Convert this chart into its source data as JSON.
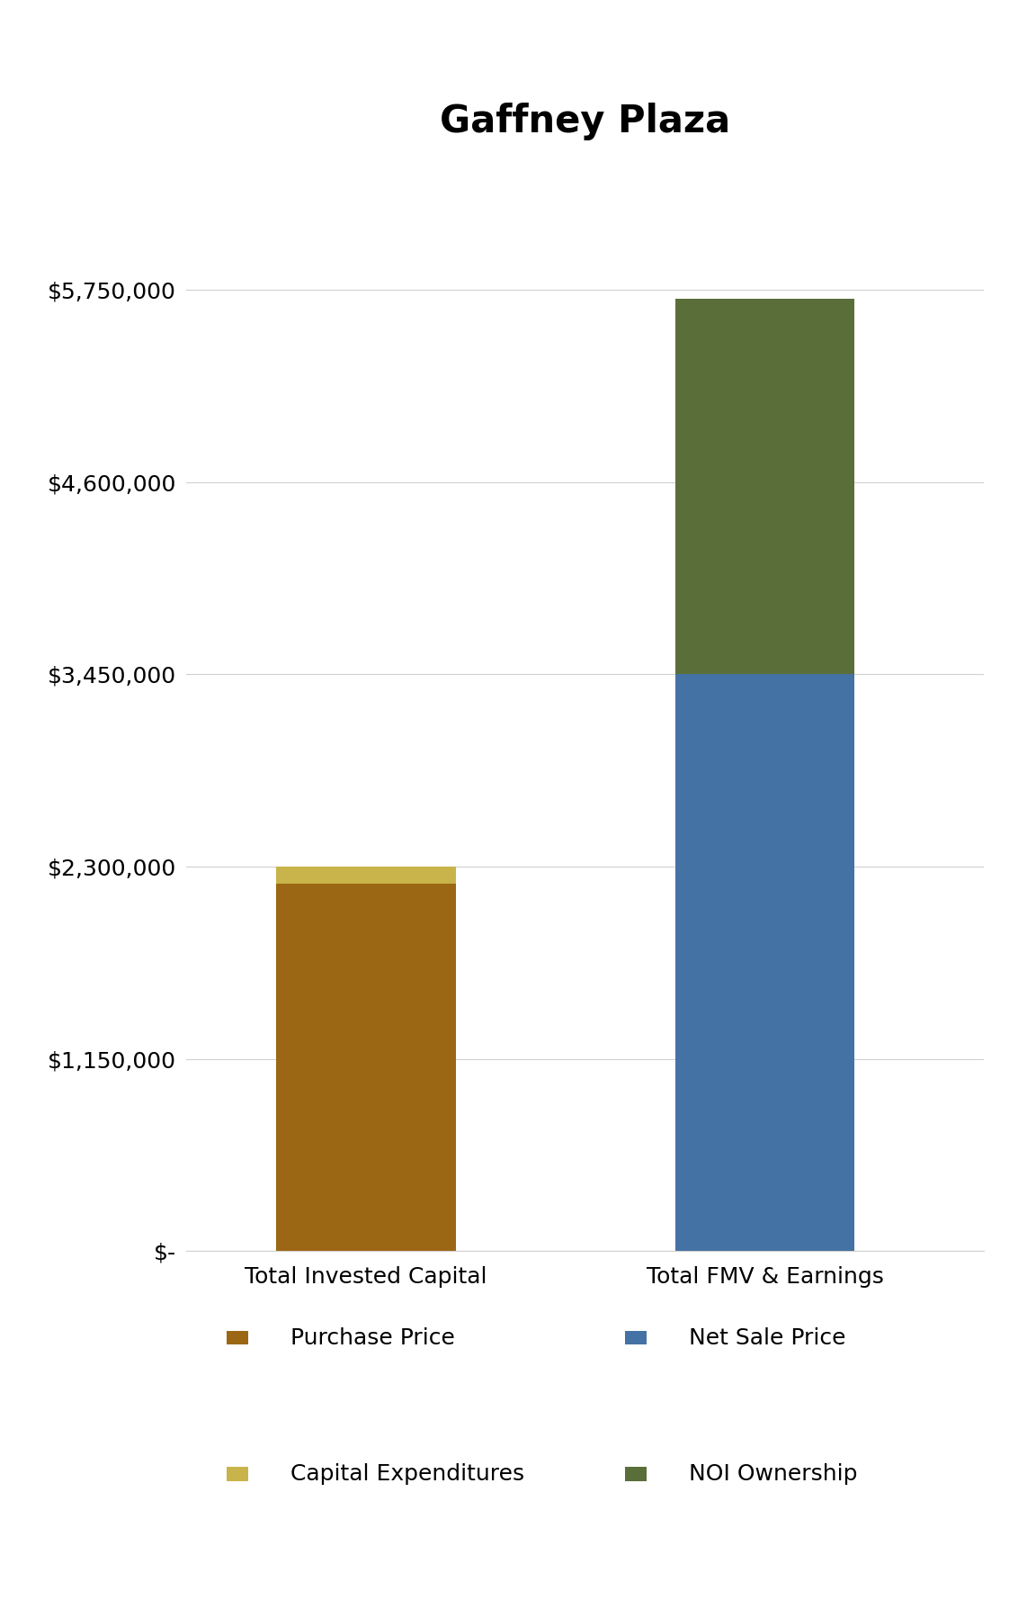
{
  "title": "Gaffney Plaza",
  "categories": [
    "Total Invested Capital",
    "Total FMV & Earnings"
  ],
  "purchase_price": 2200000,
  "capital_expenditures": 100000,
  "net_sale_price": 3450000,
  "noi_ownership": 2250000,
  "colors": {
    "purchase_price": "#9C6714",
    "capital_expenditures": "#C8B44A",
    "net_sale_price": "#4472A4",
    "noi_ownership": "#5A6E3A"
  },
  "ylim": [
    0,
    6325000
  ],
  "yticks": [
    0,
    1150000,
    2300000,
    3450000,
    4600000,
    5750000
  ],
  "ytick_labels": [
    "$-",
    "$1,150,000",
    "$2,300,000",
    "$3,450,000",
    "$4,600,000",
    "$5,750,000"
  ],
  "legend_labels_col1": [
    "Purchase Price",
    "Capital Expenditures"
  ],
  "legend_labels_col2": [
    "Net Sale Price",
    "NOI Ownership"
  ],
  "legend_colors_col1": [
    "#9C6714",
    "#C8B44A"
  ],
  "legend_colors_col2": [
    "#4472A4",
    "#5A6E3A"
  ],
  "title_fontsize": 30,
  "tick_fontsize": 18,
  "xlabel_fontsize": 18,
  "legend_fontsize": 18,
  "background_color": "#ffffff",
  "bar_width": 0.45
}
